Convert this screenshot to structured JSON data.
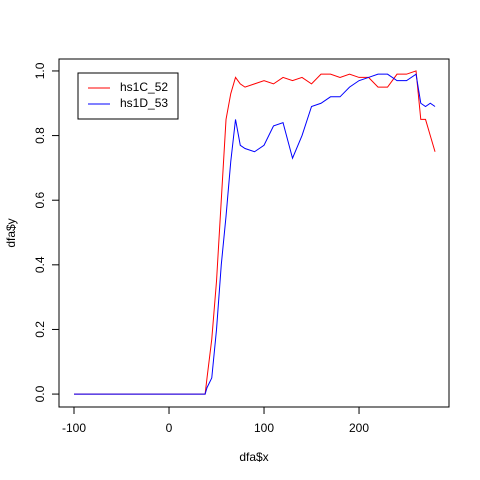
{
  "chart_data": {
    "type": "line",
    "x_label": "dfa$x",
    "y_label": "dfa$y",
    "x": [
      -100,
      0,
      38,
      40,
      45,
      50,
      55,
      60,
      65,
      70,
      75,
      80,
      90,
      100,
      110,
      120,
      130,
      140,
      150,
      160,
      170,
      180,
      190,
      200,
      210,
      220,
      230,
      240,
      250,
      260,
      265,
      270,
      275,
      280
    ],
    "series": [
      {
        "name": "hs1C_52",
        "color": "#ff0000",
        "values": [
          0,
          0,
          0,
          0.05,
          0.17,
          0.35,
          0.6,
          0.85,
          0.93,
          0.98,
          0.96,
          0.95,
          0.96,
          0.97,
          0.96,
          0.98,
          0.97,
          0.98,
          0.96,
          0.99,
          0.99,
          0.98,
          0.99,
          0.98,
          0.98,
          0.95,
          0.95,
          0.99,
          0.99,
          1.0,
          0.85,
          0.85,
          0.8,
          0.75
        ]
      },
      {
        "name": "hs1D_53",
        "color": "#0000ff",
        "values": [
          0,
          0,
          0,
          0.02,
          0.05,
          0.2,
          0.4,
          0.55,
          0.72,
          0.85,
          0.77,
          0.76,
          0.75,
          0.77,
          0.83,
          0.84,
          0.73,
          0.8,
          0.89,
          0.9,
          0.92,
          0.92,
          0.95,
          0.97,
          0.98,
          0.99,
          0.99,
          0.97,
          0.97,
          0.99,
          0.9,
          0.89,
          0.9,
          0.89
        ]
      }
    ],
    "xlim": [
      -115.8,
      294.7
    ],
    "xticks": [
      -100,
      0,
      100,
      200
    ],
    "ylim": [
      -0.04,
      1.037
    ],
    "yticks": [
      {
        "value": 0,
        "label": "0.0"
      },
      0.2,
      0.4,
      0.6,
      0.8,
      {
        "value": 1,
        "label": "1.0"
      }
    ],
    "legend": "top-left"
  }
}
